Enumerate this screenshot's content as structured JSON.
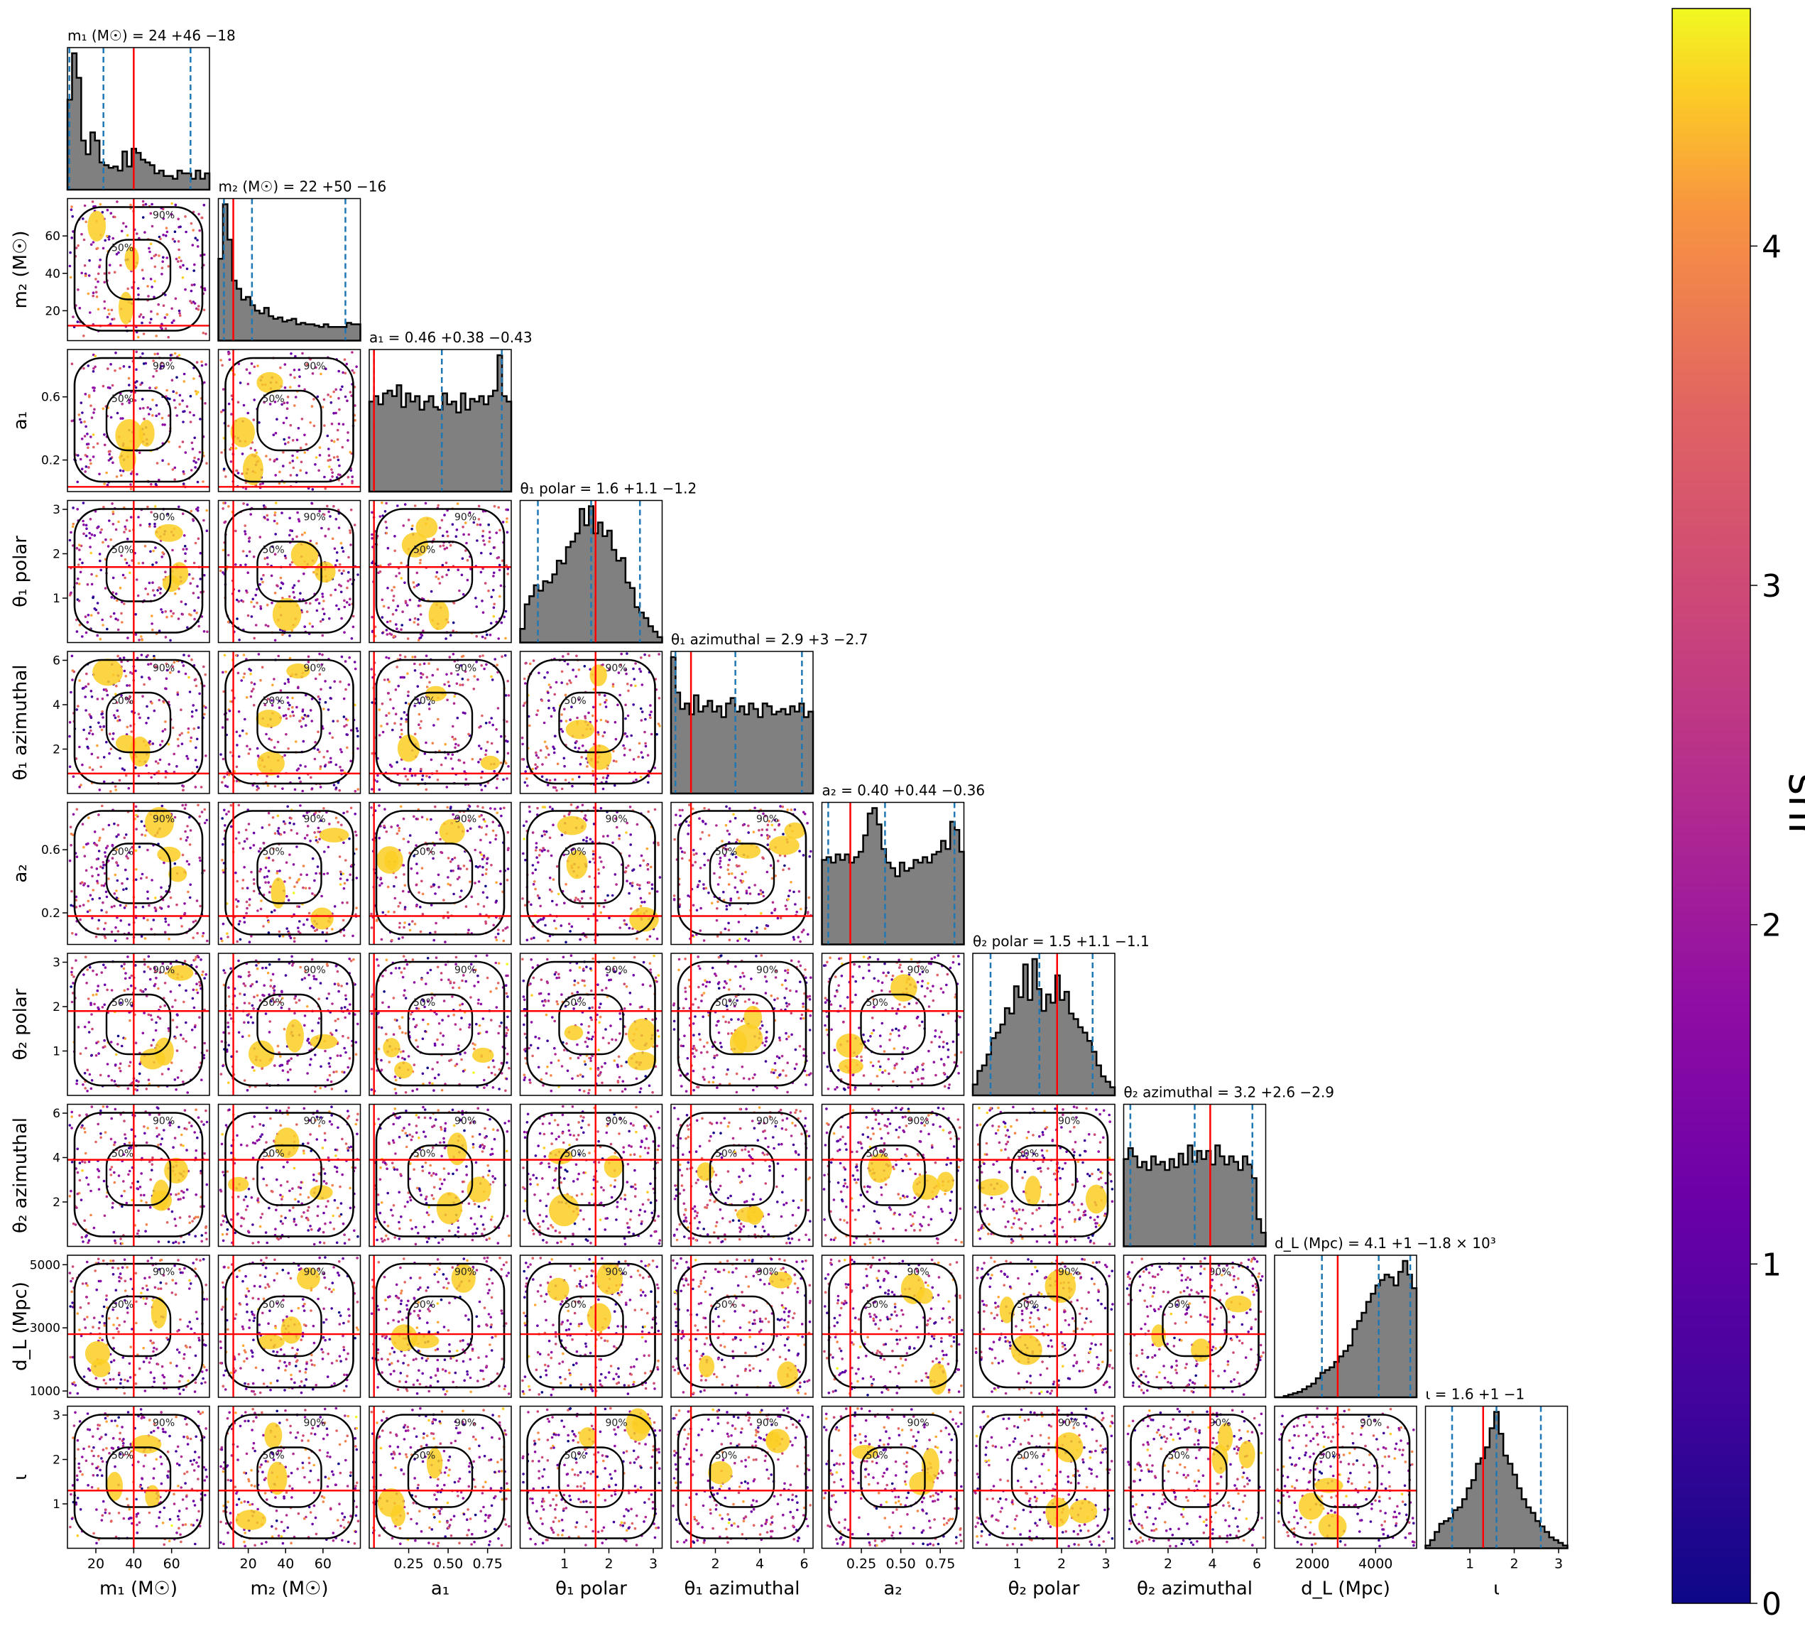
{
  "figure": {
    "colorbar": {
      "label": "snr",
      "ticks": [
        "0",
        "1",
        "2",
        "3",
        "4"
      ],
      "range": [
        0,
        4.7
      ],
      "colormap": "plasma"
    }
  },
  "chart_data": {
    "type": "corner",
    "color_encoding": "snr",
    "markers": {
      "injected_value_color": "#ff0000",
      "quantile_color": "#1f77b4",
      "histogram_color": "#808080"
    },
    "contour_levels": [
      "50%",
      "90%"
    ],
    "parameters": [
      {
        "key": "m1",
        "axis_label": "m₁ (M☉)",
        "title": "m₁ (M☉) = 24 +46 −18",
        "median": 24,
        "plus": 46,
        "minus": 18,
        "range": [
          5,
          80
        ],
        "ticks": [
          20,
          40,
          60
        ],
        "tick_labels": [
          "20",
          "40",
          "60"
        ],
        "injected": 40,
        "quantiles": [
          6,
          24,
          70
        ],
        "hist": [
          0.66,
          1.0,
          0.82,
          0.36,
          0.26,
          0.42,
          0.36,
          0.2,
          0.18,
          0.16,
          0.17,
          0.14,
          0.28,
          0.17,
          0.3,
          0.27,
          0.22,
          0.2,
          0.18,
          0.12,
          0.14,
          0.1,
          0.1,
          0.08,
          0.14,
          0.12,
          0.12,
          0.08,
          0.14,
          0.08,
          0.12
        ]
      },
      {
        "key": "m2",
        "axis_label": "m₂ (M☉)",
        "title": "m₂ (M☉) = 22 +50 −16",
        "median": 22,
        "plus": 50,
        "minus": 16,
        "range": [
          4,
          80
        ],
        "ticks": [
          20,
          40,
          60
        ],
        "tick_labels": [
          "20",
          "40",
          "60"
        ],
        "y_ticks": [
          20,
          40,
          60
        ],
        "injected": 12,
        "quantiles": [
          7,
          22,
          72
        ],
        "hist": [
          0.6,
          1.0,
          0.74,
          0.44,
          0.38,
          0.3,
          0.32,
          0.26,
          0.22,
          0.2,
          0.24,
          0.18,
          0.16,
          0.17,
          0.14,
          0.15,
          0.16,
          0.12,
          0.13,
          0.12,
          0.12,
          0.11,
          0.1,
          0.12,
          0.1,
          0.1,
          0.1,
          0.1,
          0.13,
          0.12,
          0.12
        ]
      },
      {
        "key": "a1",
        "axis_label": "a₁",
        "title": "a₁ = 0.46 +0.38 −0.43",
        "median": 0.46,
        "plus": 0.38,
        "minus": 0.43,
        "range": [
          0.0,
          0.9
        ],
        "ticks": [
          0.25,
          0.5,
          0.75
        ],
        "tick_labels": [
          "0.25",
          "0.50",
          "0.75"
        ],
        "y_ticks": [
          0.2,
          0.6
        ],
        "injected": 0.03,
        "quantiles": [
          0.03,
          0.46,
          0.84
        ],
        "hist": [
          0.66,
          0.7,
          0.64,
          0.72,
          0.74,
          0.7,
          0.78,
          0.62,
          0.72,
          0.66,
          0.7,
          0.6,
          0.66,
          0.7,
          0.62,
          0.6,
          0.72,
          0.64,
          0.66,
          0.58,
          0.72,
          0.6,
          0.68,
          0.66,
          0.7,
          0.64,
          0.7,
          0.74,
          1.0,
          0.7,
          0.66
        ]
      },
      {
        "key": "theta1p",
        "axis_label": "θ₁ polar",
        "title": "θ₁ polar = 1.6 +1.1 −1.2",
        "median": 1.6,
        "plus": 1.1,
        "minus": 1.2,
        "range": [
          0.0,
          3.2
        ],
        "ticks": [
          1,
          2,
          3
        ],
        "tick_labels": [
          "1",
          "2",
          "3"
        ],
        "y_ticks": [
          1,
          2,
          3
        ],
        "injected": 1.7,
        "quantiles": [
          0.4,
          1.6,
          2.7
        ],
        "hist": [
          0.1,
          0.28,
          0.34,
          0.42,
          0.38,
          0.45,
          0.44,
          0.5,
          0.6,
          0.58,
          0.7,
          0.74,
          0.8,
          0.98,
          0.86,
          1.0,
          0.8,
          0.88,
          0.78,
          0.82,
          0.68,
          0.6,
          0.62,
          0.44,
          0.4,
          0.26,
          0.22,
          0.18,
          0.12,
          0.08,
          0.04
        ]
      },
      {
        "key": "theta1a",
        "axis_label": "θ₁ azimuthal",
        "title": "θ₁ azimuthal = 2.9 +3 −2.7",
        "median": 2.9,
        "plus": 3,
        "minus": 2.7,
        "range": [
          0.0,
          6.4
        ],
        "ticks": [
          2,
          4,
          6
        ],
        "tick_labels": [
          "2",
          "4",
          "6"
        ],
        "y_ticks": [
          2,
          4,
          6
        ],
        "injected": 0.9,
        "quantiles": [
          0.2,
          2.9,
          5.9
        ],
        "hist": [
          1.0,
          0.74,
          0.62,
          0.66,
          0.58,
          0.72,
          0.6,
          0.64,
          0.68,
          0.6,
          0.64,
          0.56,
          0.66,
          0.7,
          0.6,
          0.64,
          0.58,
          0.66,
          0.62,
          0.56,
          0.66,
          0.64,
          0.58,
          0.6,
          0.62,
          0.58,
          0.64,
          0.6,
          0.66,
          0.56,
          0.6
        ]
      },
      {
        "key": "a2",
        "axis_label": "a₂",
        "title": "a₂ = 0.40 +0.44 −0.36",
        "median": 0.4,
        "plus": 0.44,
        "minus": 0.36,
        "range": [
          0.0,
          0.9
        ],
        "ticks": [
          0.25,
          0.5,
          0.75
        ],
        "tick_labels": [
          "0.25",
          "0.50",
          "0.75"
        ],
        "y_ticks": [
          0.2,
          0.6
        ],
        "injected": 0.18,
        "quantiles": [
          0.04,
          0.4,
          0.84
        ],
        "hist": [
          0.62,
          0.64,
          0.6,
          0.66,
          0.62,
          0.66,
          0.6,
          0.64,
          0.68,
          0.8,
          0.96,
          1.0,
          0.88,
          0.7,
          0.6,
          0.56,
          0.5,
          0.6,
          0.54,
          0.56,
          0.62,
          0.6,
          0.64,
          0.6,
          0.66,
          0.68,
          0.76,
          0.7,
          0.9,
          0.84,
          0.68
        ]
      },
      {
        "key": "theta2p",
        "axis_label": "θ₂ polar",
        "title": "θ₂ polar = 1.5 +1.1 −1.1",
        "median": 1.5,
        "plus": 1.1,
        "minus": 1.1,
        "range": [
          0.0,
          3.2
        ],
        "ticks": [
          1,
          2,
          3
        ],
        "tick_labels": [
          "1",
          "2",
          "3"
        ],
        "y_ticks": [
          1,
          2,
          3
        ],
        "injected": 1.9,
        "quantiles": [
          0.4,
          1.5,
          2.7
        ],
        "hist": [
          0.08,
          0.18,
          0.22,
          0.3,
          0.42,
          0.46,
          0.52,
          0.64,
          0.6,
          0.8,
          0.72,
          0.96,
          0.7,
          1.0,
          0.78,
          0.62,
          0.74,
          0.68,
          0.88,
          0.7,
          0.76,
          0.6,
          0.56,
          0.5,
          0.46,
          0.4,
          0.32,
          0.22,
          0.14,
          0.1,
          0.06
        ]
      },
      {
        "key": "theta2a",
        "axis_label": "θ₂ azimuthal",
        "title": "θ₂ azimuthal = 3.2 +2.6 −2.9",
        "median": 3.2,
        "plus": 2.6,
        "minus": 2.9,
        "range": [
          0.0,
          6.4
        ],
        "ticks": [
          2,
          4,
          6
        ],
        "tick_labels": [
          "2",
          "4",
          "6"
        ],
        "y_ticks": [
          2,
          4,
          6
        ],
        "injected": 3.9,
        "quantiles": [
          0.3,
          3.2,
          5.8
        ],
        "hist": [
          0.64,
          0.72,
          0.66,
          0.58,
          0.62,
          0.56,
          0.66,
          0.6,
          0.62,
          0.56,
          0.64,
          0.58,
          0.68,
          0.6,
          0.74,
          0.62,
          0.7,
          0.64,
          0.7,
          0.6,
          0.74,
          0.66,
          0.6,
          0.66,
          0.62,
          0.56,
          0.66,
          0.6,
          0.5,
          0.2,
          0.1
        ]
      },
      {
        "key": "dL",
        "axis_label": "d_L (Mpc)",
        "title": "d_L (Mpc) = 4.1 +1 −1.8 × 10³",
        "median": 4.1,
        "plus": 1,
        "minus": 1.8,
        "scale": "×10³",
        "range": [
          800,
          5300
        ],
        "ticks": [
          2000,
          4000
        ],
        "tick_labels": [
          "2000",
          "4000"
        ],
        "y_ticks": [
          1000,
          3000,
          5000
        ],
        "injected": 2800,
        "quantiles": [
          2300,
          4100,
          5100
        ],
        "hist": [
          0.0,
          0.0,
          0.01,
          0.02,
          0.03,
          0.04,
          0.06,
          0.08,
          0.1,
          0.14,
          0.18,
          0.2,
          0.22,
          0.26,
          0.3,
          0.34,
          0.38,
          0.5,
          0.56,
          0.62,
          0.7,
          0.76,
          0.82,
          0.86,
          0.9,
          0.88,
          0.82,
          0.92,
          1.0,
          0.9,
          0.8
        ]
      },
      {
        "key": "iota",
        "axis_label": "ι",
        "title": "ι = 1.6 +1 −1",
        "median": 1.6,
        "plus": 1,
        "minus": 1,
        "range": [
          0.0,
          3.2
        ],
        "ticks": [
          1,
          2,
          3
        ],
        "tick_labels": [
          "1",
          "2",
          "3"
        ],
        "y_ticks": [
          1,
          2,
          3
        ],
        "injected": 1.3,
        "quantiles": [
          0.6,
          1.6,
          2.6
        ],
        "hist": [
          0.02,
          0.06,
          0.12,
          0.18,
          0.2,
          0.22,
          0.28,
          0.3,
          0.36,
          0.44,
          0.5,
          0.62,
          0.66,
          0.74,
          0.88,
          1.0,
          0.84,
          0.68,
          0.62,
          0.54,
          0.44,
          0.36,
          0.3,
          0.26,
          0.2,
          0.16,
          0.12,
          0.08,
          0.06,
          0.04,
          0.02
        ]
      }
    ]
  }
}
